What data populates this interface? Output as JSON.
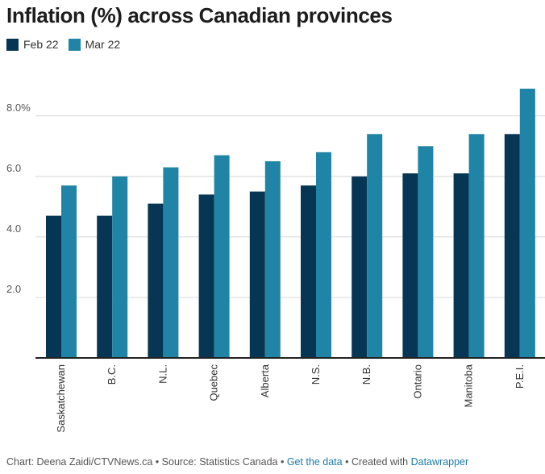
{
  "colors": {
    "series_0": "#063653",
    "series_1": "#1f84a5",
    "grid": "#d8d8d8",
    "axis": "#222222",
    "link": "#1a7ba6"
  },
  "footer": {
    "chart_by": "Chart: Deena Zaidi/CTVNews.ca",
    "sep1": " • ",
    "source": "Source: Statistics Canada",
    "sep2": " • ",
    "get_data": "Get the data",
    "sep3": " • ",
    "created_with": "Created with ",
    "datawrapper": "Datawrapper"
  },
  "chart_data": {
    "type": "bar",
    "title": "Inflation (%) across Canadian provinces",
    "categories": [
      "Saskatchewan",
      "B.C.",
      "N.L.",
      "Quebec",
      "Alberta",
      "N.S.",
      "N.B.",
      "Ontario",
      "Manitoba",
      "P.E.I."
    ],
    "series": [
      {
        "name": "Feb 22",
        "values": [
          4.7,
          4.7,
          5.1,
          5.4,
          5.5,
          5.7,
          6.0,
          6.1,
          6.1,
          7.4
        ]
      },
      {
        "name": "Mar 22",
        "values": [
          5.7,
          6.0,
          6.3,
          6.7,
          6.5,
          6.8,
          7.4,
          7.0,
          7.4,
          8.9
        ]
      }
    ],
    "ylim": [
      0,
      8.9
    ],
    "yticks": [
      2,
      4,
      6,
      8
    ],
    "ytick_labels": [
      "2.0",
      "4.0",
      "6.0",
      "8.0%"
    ],
    "xlabel": "",
    "ylabel": "",
    "grid": true,
    "legend_position": "top-left"
  }
}
